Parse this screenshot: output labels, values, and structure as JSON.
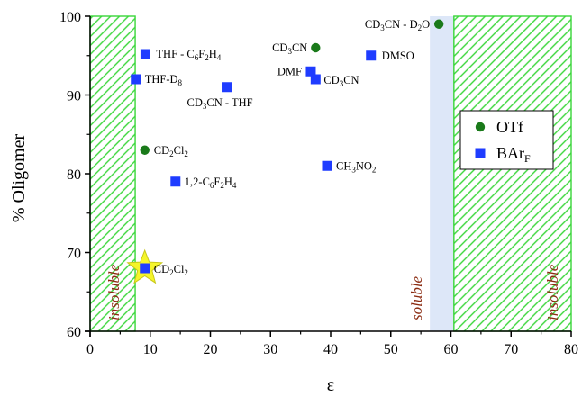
{
  "chart_data": {
    "type": "scatter",
    "xlabel": "ε",
    "ylabel": "% Oligomer",
    "xlim": [
      0,
      80
    ],
    "ylim": [
      60,
      100
    ],
    "xticks": [
      0,
      10,
      20,
      30,
      40,
      50,
      60,
      70,
      80
    ],
    "yticks": [
      60,
      70,
      80,
      90,
      100
    ],
    "grid": false,
    "legend_position": "right",
    "colors": {
      "otf": "#1a7a1a",
      "barf": "#1f3cff",
      "hatch": "#39d639",
      "band": "#dde7f8",
      "highlight": "#f5f52a",
      "region_text": "#8b2c12"
    },
    "regions": [
      {
        "x0": 0,
        "x1": 7.5,
        "style": "hatch",
        "label": "insoluble"
      },
      {
        "x0": 56.5,
        "x1": 60.5,
        "style": "band",
        "label": "soluble"
      },
      {
        "x0": 60.5,
        "x1": 80,
        "style": "hatch",
        "label": "insoluble"
      }
    ],
    "series": [
      {
        "name": "OTf",
        "marker": "circle",
        "points": [
          {
            "x": 9.1,
            "y": 83,
            "label": [
              "CD",
              {
                "sub": "2"
              },
              "Cl",
              {
                "sub": "2"
              }
            ]
          },
          {
            "x": 37.5,
            "y": 96,
            "label": [
              "CD",
              {
                "sub": "3"
              },
              "CN"
            ]
          },
          {
            "x": 58,
            "y": 99,
            "label": [
              "CD",
              {
                "sub": "3"
              },
              "CN - D",
              {
                "sub": "2"
              },
              "O"
            ]
          }
        ]
      },
      {
        "name": "BAr",
        "name_sub": "F",
        "marker": "square",
        "points": [
          {
            "x": 9.1,
            "y": 68,
            "label": [
              "CD",
              {
                "sub": "2"
              },
              "Cl",
              {
                "sub": "2"
              }
            ],
            "highlight": true
          },
          {
            "x": 9.2,
            "y": 95.2,
            "label": [
              "THF - C",
              {
                "sub": "6"
              },
              "F",
              {
                "sub": "2"
              },
              "H",
              {
                "sub": "4"
              }
            ]
          },
          {
            "x": 7.6,
            "y": 92,
            "label": [
              "THF-D",
              {
                "sub": "8"
              }
            ]
          },
          {
            "x": 22.7,
            "y": 91,
            "label": [
              "CD",
              {
                "sub": "3"
              },
              "CN - THF"
            ]
          },
          {
            "x": 14.2,
            "y": 79,
            "label": [
              "1,2-C",
              {
                "sub": "6"
              },
              "F",
              {
                "sub": "2"
              },
              "H",
              {
                "sub": "4"
              }
            ]
          },
          {
            "x": 36.7,
            "y": 93,
            "label": [
              "DMF"
            ]
          },
          {
            "x": 37.5,
            "y": 92,
            "label": [
              "CD",
              {
                "sub": "3"
              },
              "CN"
            ]
          },
          {
            "x": 46.7,
            "y": 95,
            "label": [
              "DMSO"
            ]
          },
          {
            "x": 39.4,
            "y": 81,
            "label": [
              "CH",
              {
                "sub": "3"
              },
              "NO",
              {
                "sub": "2"
              }
            ]
          }
        ]
      }
    ]
  }
}
